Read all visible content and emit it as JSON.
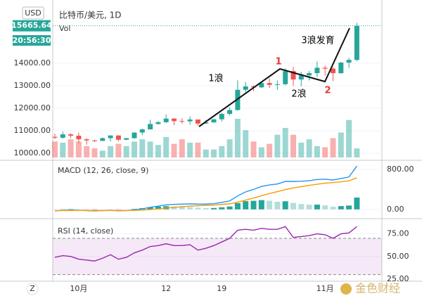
{
  "header": {
    "currency": "USD",
    "symbol": "比特币/美元, 1D",
    "countdown": "20:56:30",
    "toolbar_icon": "Z",
    "watermark": "金色财经"
  },
  "chart_data": [
    {
      "type": "candlestick",
      "volume_label": "Vol",
      "categories": [
        null,
        null,
        null,
        "10月",
        null,
        null,
        null,
        null,
        null,
        null,
        null,
        null,
        null,
        null,
        "12",
        null,
        null,
        null,
        null,
        null,
        null,
        "19",
        null,
        null,
        null,
        null,
        null,
        null,
        null,
        null,
        null,
        null,
        null,
        null,
        "11月",
        null,
        null,
        null,
        null
      ],
      "open": [
        10730,
        10690,
        10840,
        10780,
        10620,
        10570,
        10550,
        10670,
        10790,
        10600,
        10670,
        10920,
        11060,
        11300,
        11380,
        11540,
        11430,
        11420,
        11500,
        11320,
        11370,
        11510,
        11750,
        11920,
        12820,
        12970,
        12930,
        13120,
        13040,
        13070,
        13650,
        13280,
        13460,
        13560,
        13800,
        13760,
        13560,
        14030,
        14150
      ],
      "high": [
        10870,
        10960,
        10890,
        10920,
        10670,
        10600,
        10700,
        10800,
        10800,
        10680,
        10930,
        11100,
        11490,
        11440,
        11720,
        11560,
        11550,
        11640,
        11500,
        11470,
        11520,
        11800,
        12030,
        13240,
        13170,
        13020,
        13160,
        13330,
        13240,
        13770,
        13840,
        13620,
        13660,
        14080,
        13900,
        13820,
        14060,
        14240,
        15800
      ],
      "low": [
        10630,
        10640,
        10670,
        10440,
        10380,
        10500,
        10540,
        10520,
        10530,
        10580,
        10650,
        10800,
        11060,
        11280,
        11340,
        11250,
        11320,
        11270,
        11230,
        11300,
        11360,
        11410,
        11690,
        11900,
        12720,
        12760,
        12900,
        12900,
        12820,
        13020,
        13000,
        12980,
        13240,
        13380,
        13450,
        13210,
        13530,
        13800,
        14090
      ],
      "close": [
        10690,
        10840,
        10780,
        10620,
        10570,
        10550,
        10670,
        10790,
        10600,
        10670,
        10920,
        11060,
        11300,
        11380,
        11540,
        11430,
        11420,
        11500,
        11320,
        11370,
        11510,
        11750,
        11920,
        12820,
        12970,
        12930,
        13120,
        13040,
        13070,
        13650,
        13280,
        13460,
        13560,
        13800,
        13760,
        13560,
        14030,
        14150,
        15665.64
      ],
      "volume": [
        14,
        13,
        16,
        14,
        10,
        8,
        6,
        10,
        12,
        10,
        14,
        16,
        14,
        11,
        18,
        12,
        16,
        13,
        13,
        7,
        7,
        10,
        16,
        34,
        24,
        14,
        9,
        12,
        20,
        26,
        20,
        13,
        16,
        10,
        9,
        17,
        22,
        33,
        8
      ],
      "up_color": "#26a69a",
      "down_color": "#ef5350",
      "ylim": [
        9687,
        16812
      ],
      "yticks": [
        {
          "value": 10000,
          "label": "10000.00"
        },
        {
          "value": 11000,
          "label": "11000.00"
        },
        {
          "value": 12000,
          "label": "12000.00"
        },
        {
          "value": 13000,
          "label": "13000.00"
        },
        {
          "value": 14000,
          "label": "14000.00"
        }
      ],
      "annotations": [
        {
          "text": "1浪",
          "color": "#000000"
        },
        {
          "text": "1",
          "color": "#e53935"
        },
        {
          "text": "2浪",
          "color": "#000000"
        },
        {
          "text": "2",
          "color": "#e53935"
        },
        {
          "text": "3浪发育",
          "color": "#000000"
        }
      ]
    },
    {
      "type": "macd",
      "title": "MACD (12, 26, close, 9)",
      "series": [
        {
          "color": "#2196f3",
          "values": [
            -30,
            -20,
            -15,
            -18,
            -25,
            -30,
            -25,
            -20,
            -28,
            -25,
            -10,
            10,
            40,
            65,
            90,
            100,
            105,
            110,
            105,
            105,
            115,
            140,
            170,
            270,
            350,
            400,
            460,
            490,
            510,
            560,
            560,
            565,
            575,
            600,
            605,
            590,
            620,
            650,
            870
          ]
        },
        {
          "color": "#ff9800",
          "values": [
            -25,
            -24,
            -22,
            -21,
            -22,
            -23,
            -23,
            -22,
            -23,
            -23,
            -20,
            -14,
            -3,
            10,
            26,
            41,
            54,
            65,
            73,
            80,
            87,
            98,
            112,
            144,
            185,
            228,
            274,
            317,
            356,
            397,
            430,
            457,
            481,
            505,
            525,
            538,
            554,
            573,
            633
          ]
        }
      ],
      "histogram": [
        -5,
        4,
        7,
        3,
        -3,
        -7,
        -2,
        2,
        -5,
        -2,
        10,
        24,
        43,
        55,
        64,
        59,
        51,
        45,
        32,
        25,
        28,
        42,
        58,
        126,
        165,
        172,
        186,
        173,
        154,
        163,
        130,
        108,
        94,
        95,
        80,
        52,
        66,
        77,
        237
      ],
      "ylim": [
        -186,
        957
      ],
      "yticks": [
        {
          "value": 0,
          "label": "0.00"
        },
        {
          "value": 800,
          "label": "800.00"
        }
      ]
    },
    {
      "type": "rsi",
      "title": "RSI (14, close)",
      "series": [
        {
          "color": "#9c27b0",
          "values": [
            49,
            51,
            50,
            47,
            46,
            45,
            48,
            52,
            47,
            49,
            54,
            57,
            61,
            62,
            64,
            62,
            62,
            63,
            57,
            59,
            62,
            66,
            70,
            79,
            80,
            79,
            81,
            80,
            80,
            83,
            71,
            72,
            73,
            75,
            74,
            70,
            75,
            76,
            83
          ]
        }
      ],
      "bands": [
        30,
        70
      ],
      "ylim": [
        22.7,
        90.2
      ],
      "yticks": [
        {
          "value": 25,
          "label": "25.00"
        },
        {
          "value": 50,
          "label": "50.00"
        },
        {
          "value": 75,
          "label": "75.00"
        }
      ]
    }
  ]
}
